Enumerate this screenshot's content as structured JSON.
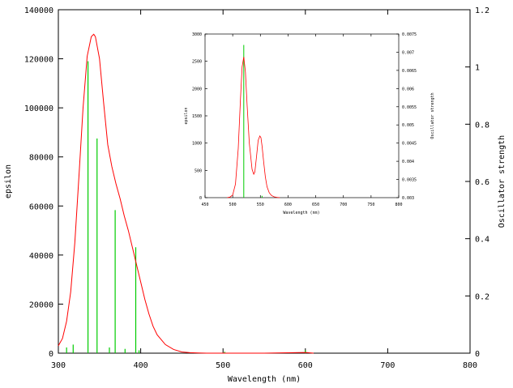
{
  "chart_data": [
    {
      "type": "line",
      "xlabel": "Wavelength (nm)",
      "ylabel": "epsilon",
      "y2label": "Oscillator strength",
      "xlim": [
        300,
        800
      ],
      "ylim": [
        0,
        140000
      ],
      "y2lim": [
        0,
        1.2
      ],
      "xticks": [
        "300",
        "400",
        "500",
        "600",
        "700",
        "800"
      ],
      "yticks": [
        "0",
        "20000",
        "40000",
        "60000",
        "80000",
        "100000",
        "120000",
        "140000"
      ],
      "y2ticks": [
        "0",
        "0.2",
        "0.4",
        "0.6",
        "0.8",
        "1",
        "1.2"
      ],
      "grid": false,
      "line_color": "#ff0000",
      "stick_color": "#00cc00",
      "series": [
        {
          "x": [
            300,
            305,
            310,
            315,
            320,
            325,
            330,
            335,
            340,
            343,
            345,
            350,
            355,
            360,
            365,
            370,
            375,
            380,
            385,
            390,
            395,
            400,
            405,
            410,
            415,
            420,
            430,
            440,
            450,
            460,
            470,
            480,
            500,
            550,
            600,
            610
          ],
          "y": [
            3000,
            6000,
            13000,
            25000,
            45000,
            72000,
            100000,
            121000,
            129000,
            130000,
            129000,
            120000,
            102000,
            85000,
            76000,
            69000,
            63000,
            56000,
            50000,
            43000,
            36000,
            29000,
            22000,
            16000,
            11000,
            7500,
            3500,
            1500,
            500,
            200,
            100,
            0,
            0,
            0,
            300,
            0
          ]
        }
      ],
      "sticks": [
        {
          "x": 310,
          "f": 0.02
        },
        {
          "x": 318,
          "f": 0.03
        },
        {
          "x": 336,
          "f": 1.02
        },
        {
          "x": 347,
          "f": 0.75
        },
        {
          "x": 362,
          "f": 0.02
        },
        {
          "x": 369,
          "f": 0.5
        },
        {
          "x": 381,
          "f": 0.015
        },
        {
          "x": 394,
          "f": 0.37
        },
        {
          "x": 398,
          "f": 0.01
        },
        {
          "x": 502,
          "f": 0.005
        },
        {
          "x": 600,
          "f": 0.01
        }
      ]
    },
    {
      "type": "line",
      "xlabel": "Wavelength (nm)",
      "ylabel": "epsilon",
      "y2label": "Oscillator strength",
      "xlim": [
        450,
        800
      ],
      "ylim": [
        0,
        3000
      ],
      "y2lim": [
        0.003,
        0.0075
      ],
      "xticks": [
        "450",
        "500",
        "550",
        "600",
        "650",
        "700",
        "750",
        "800"
      ],
      "yticks": [
        "0",
        "500",
        "1000",
        "1500",
        "2000",
        "2500",
        "3000"
      ],
      "y2ticks": [
        "0.003",
        "0.0035",
        "0.004",
        "0.0045",
        "0.005",
        "0.0055",
        "0.006",
        "0.0065",
        "0.007",
        "0.0075"
      ],
      "grid": false,
      "line_color": "#ff0000",
      "stick_color": "#00cc00",
      "series": [
        {
          "x": [
            490,
            495,
            500,
            505,
            510,
            514,
            517,
            520,
            523,
            526,
            530,
            535,
            538,
            540,
            543,
            546,
            549,
            551,
            553,
            556,
            559,
            562,
            566,
            570,
            575,
            580,
            585
          ],
          "y": [
            0,
            10,
            50,
            250,
            900,
            1800,
            2400,
            2580,
            2300,
            1700,
            1000,
            520,
            430,
            470,
            750,
            1050,
            1130,
            1100,
            950,
            650,
            380,
            200,
            90,
            40,
            15,
            5,
            0
          ]
        }
      ],
      "sticks": [
        {
          "x": 520,
          "f": 0.0072
        },
        {
          "x": 553,
          "f": 0.00305
        }
      ]
    }
  ]
}
